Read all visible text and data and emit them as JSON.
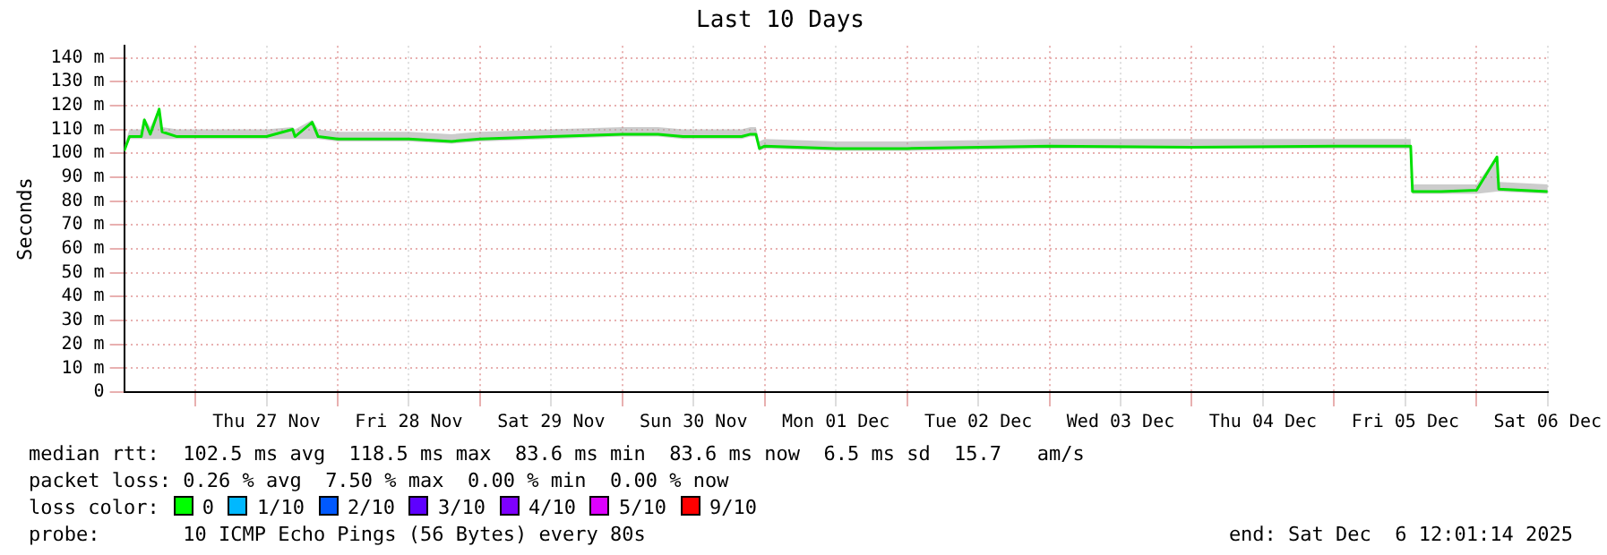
{
  "chart_data": {
    "type": "line",
    "title": "Last 10 Days",
    "ylabel": "Seconds",
    "x": [
      "2025-11-26T12:00",
      "2025-11-26T12:54",
      "2025-11-26T14:54",
      "2025-11-26T15:24",
      "2025-11-26T16:24",
      "2025-11-26T17:54",
      "2025-11-26T18:24",
      "2025-11-26T20:54",
      "2025-11-27T00:00",
      "2025-11-27T06:00",
      "2025-11-27T12:00",
      "2025-11-27T16:24",
      "2025-11-27T16:48",
      "2025-11-27T19:42",
      "2025-11-27T20:42",
      "2025-11-28T00:00",
      "2025-11-28T12:00",
      "2025-11-28T19:12",
      "2025-11-29T00:00",
      "2025-11-29T12:00",
      "2025-11-30T00:00",
      "2025-11-30T06:00",
      "2025-11-30T10:12",
      "2025-11-30T20:06",
      "2025-11-30T21:36",
      "2025-11-30T22:30",
      "2025-11-30T23:06",
      "2025-12-01T00:00",
      "2025-12-01T12:00",
      "2025-12-02T00:00",
      "2025-12-03T00:00",
      "2025-12-04T00:00",
      "2025-12-05T00:00",
      "2025-12-05T12:54",
      "2025-12-05T13:12",
      "2025-12-05T18:00",
      "2025-12-06T00:00",
      "2025-12-06T03:27",
      "2025-12-06T03:45",
      "2025-12-06T12:00"
    ],
    "series": [
      {
        "color": "#00e000",
        "values": [
          101,
          107,
          107,
          114,
          108,
          118.5,
          109,
          107,
          107,
          107,
          107,
          110,
          107,
          113,
          107,
          106,
          106,
          105,
          106,
          107,
          108,
          108,
          107,
          107,
          108,
          108,
          102,
          103,
          102,
          102,
          103,
          102.5,
          103,
          103,
          84,
          84,
          84.5,
          98.5,
          85,
          84
        ],
        "lower": [
          100,
          106,
          106,
          106,
          106,
          106,
          106,
          106,
          106,
          106,
          106,
          106,
          106,
          106,
          106,
          105,
          105,
          104,
          105,
          106,
          107,
          107,
          106,
          106,
          107,
          107,
          101,
          102,
          101,
          101,
          102,
          102,
          102,
          102,
          83,
          83,
          83,
          84,
          84,
          83
        ],
        "upper": [
          103,
          110,
          110,
          115,
          111,
          119,
          111,
          110,
          110,
          110,
          110,
          111,
          110,
          114,
          110,
          109,
          109,
          108,
          109,
          110,
          111,
          111,
          110,
          110,
          111,
          111,
          105,
          106,
          105,
          105,
          106,
          106,
          106,
          106,
          87,
          87,
          87,
          99,
          88,
          87
        ]
      }
    ],
    "xlim": [
      "2025-11-26T12:00",
      "2025-12-06T12:00"
    ],
    "xticks": [
      {
        "value": "2025-11-27T00:00",
        "label": null
      },
      {
        "value": "2025-11-27T12:00",
        "label": "Thu 27 Nov"
      },
      {
        "value": "2025-11-28T00:00",
        "label": null
      },
      {
        "value": "2025-11-28T12:00",
        "label": "Fri 28 Nov"
      },
      {
        "value": "2025-11-29T00:00",
        "label": null
      },
      {
        "value": "2025-11-29T12:00",
        "label": "Sat 29 Nov"
      },
      {
        "value": "2025-11-30T00:00",
        "label": null
      },
      {
        "value": "2025-11-30T12:00",
        "label": "Sun 30 Nov"
      },
      {
        "value": "2025-12-01T00:00",
        "label": null
      },
      {
        "value": "2025-12-01T12:00",
        "label": "Mon 01 Dec"
      },
      {
        "value": "2025-12-02T00:00",
        "label": null
      },
      {
        "value": "2025-12-02T12:00",
        "label": "Tue 02 Dec"
      },
      {
        "value": "2025-12-03T00:00",
        "label": null
      },
      {
        "value": "2025-12-03T12:00",
        "label": "Wed 03 Dec"
      },
      {
        "value": "2025-12-04T00:00",
        "label": null
      },
      {
        "value": "2025-12-04T12:00",
        "label": "Thu 04 Dec"
      },
      {
        "value": "2025-12-05T00:00",
        "label": null
      },
      {
        "value": "2025-12-05T12:00",
        "label": "Fri 05 Dec"
      },
      {
        "value": "2025-12-06T00:00",
        "label": null
      },
      {
        "value": "2025-12-06T12:00",
        "label": "Sat 06 Dec"
      }
    ],
    "ylim": [
      0,
      145
    ],
    "yticks": [
      0,
      {
        "value": 10,
        "label": "10 m"
      },
      {
        "value": 20,
        "label": "20 m"
      },
      {
        "value": 30,
        "label": "30 m"
      },
      {
        "value": 40,
        "label": "40 m"
      },
      {
        "value": 50,
        "label": "50 m"
      },
      {
        "value": 60,
        "label": "60 m"
      },
      {
        "value": 70,
        "label": "70 m"
      },
      {
        "value": 80,
        "label": "80 m"
      },
      {
        "value": 90,
        "label": "90 m"
      },
      {
        "value": 100,
        "label": "100 m"
      },
      {
        "value": 110,
        "label": "110 m"
      },
      {
        "value": 120,
        "label": "120 m"
      },
      {
        "value": 130,
        "label": "130 m"
      },
      {
        "value": 140,
        "label": "140 m"
      }
    ],
    "grid": true,
    "legend": false,
    "marker": "none",
    "line_style": "solid",
    "annotations": [
      "median rtt:  102.5 ms avg  118.5 ms max  83.6 ms min  83.6 ms now  6.5 ms sd  15.7   am/s",
      "packet loss: 0.26 % avg  7.50 % max  0.00 % min  0.00 % now",
      "loss color:",
      "0",
      "1/10",
      "2/10",
      "3/10",
      "4/10",
      "5/10",
      "9/10",
      "probe:       10 ICMP Echo Pings (56 Bytes) every 80s",
      "end: Sat Dec  6 12:01:14 2025"
    ]
  }
}
